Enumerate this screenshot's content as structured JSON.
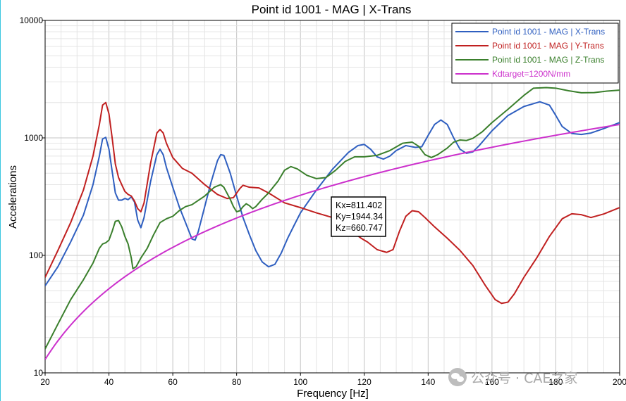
{
  "chart_data": {
    "type": "line",
    "title": "Point id 1001 - MAG | X-Trans",
    "xlabel": "Frequency [Hz]",
    "ylabel": "Accelerations",
    "xlim": [
      20,
      200
    ],
    "ylim": [
      10,
      10000
    ],
    "yscale": "log",
    "x_ticks": [
      20,
      40,
      60,
      80,
      100,
      120,
      140,
      160,
      180,
      200
    ],
    "x_tick_labels": [
      "20",
      "40",
      "60",
      "80",
      "100",
      "120",
      "140",
      "160",
      "180",
      "200"
    ],
    "y_ticks": [
      10,
      100,
      1000,
      10000
    ],
    "y_tick_labels": [
      "10",
      "100",
      "1000",
      "10000"
    ],
    "grid": true,
    "legend": {
      "position": "top-right"
    },
    "series": [
      {
        "name": "Point id 1001 - MAG | X-Trans",
        "color": "#2f5fc0",
        "points": [
          [
            20,
            55
          ],
          [
            24,
            80
          ],
          [
            28,
            130
          ],
          [
            32,
            220
          ],
          [
            35,
            400
          ],
          [
            37,
            700
          ],
          [
            38,
            980
          ],
          [
            39,
            1010
          ],
          [
            40,
            800
          ],
          [
            41,
            520
          ],
          [
            42,
            340
          ],
          [
            43,
            295
          ],
          [
            44,
            295
          ],
          [
            45,
            305
          ],
          [
            46,
            298
          ],
          [
            47,
            315
          ],
          [
            48,
            285
          ],
          [
            49,
            200
          ],
          [
            50,
            172
          ],
          [
            51,
            210
          ],
          [
            53,
            420
          ],
          [
            55,
            720
          ],
          [
            56,
            800
          ],
          [
            57,
            720
          ],
          [
            58,
            560
          ],
          [
            60,
            380
          ],
          [
            62,
            260
          ],
          [
            64,
            190
          ],
          [
            66,
            138
          ],
          [
            67,
            135
          ],
          [
            68,
            160
          ],
          [
            70,
            260
          ],
          [
            72,
            420
          ],
          [
            74,
            640
          ],
          [
            75,
            720
          ],
          [
            76,
            710
          ],
          [
            78,
            500
          ],
          [
            80,
            320
          ],
          [
            82,
            210
          ],
          [
            84,
            150
          ],
          [
            86,
            110
          ],
          [
            88,
            88
          ],
          [
            90,
            80
          ],
          [
            92,
            84
          ],
          [
            94,
            105
          ],
          [
            96,
            140
          ],
          [
            98,
            180
          ],
          [
            100,
            230
          ],
          [
            105,
            360
          ],
          [
            110,
            540
          ],
          [
            115,
            750
          ],
          [
            118,
            860
          ],
          [
            120,
            880
          ],
          [
            122,
            800
          ],
          [
            124,
            690
          ],
          [
            126,
            660
          ],
          [
            128,
            700
          ],
          [
            130,
            780
          ],
          [
            133,
            860
          ],
          [
            136,
            830
          ],
          [
            138,
            840
          ],
          [
            140,
            1050
          ],
          [
            142,
            1300
          ],
          [
            144,
            1420
          ],
          [
            146,
            1300
          ],
          [
            148,
            1000
          ],
          [
            150,
            800
          ],
          [
            152,
            740
          ],
          [
            154,
            760
          ],
          [
            156,
            860
          ],
          [
            160,
            1150
          ],
          [
            165,
            1550
          ],
          [
            170,
            1850
          ],
          [
            175,
            2030
          ],
          [
            178,
            1900
          ],
          [
            180,
            1550
          ],
          [
            182,
            1250
          ],
          [
            185,
            1090
          ],
          [
            188,
            1070
          ],
          [
            191,
            1100
          ],
          [
            195,
            1200
          ],
          [
            200,
            1350
          ]
        ]
      },
      {
        "name": "Point id 1001 - MAG | Y-Trans",
        "color": "#c02020",
        "points": [
          [
            20,
            65
          ],
          [
            24,
            110
          ],
          [
            28,
            190
          ],
          [
            32,
            360
          ],
          [
            35,
            700
          ],
          [
            37,
            1300
          ],
          [
            38,
            1900
          ],
          [
            39,
            2000
          ],
          [
            40,
            1600
          ],
          [
            41,
            1000
          ],
          [
            42,
            600
          ],
          [
            43,
            460
          ],
          [
            44,
            400
          ],
          [
            45,
            350
          ],
          [
            46,
            330
          ],
          [
            47,
            320
          ],
          [
            48,
            290
          ],
          [
            49,
            250
          ],
          [
            50,
            235
          ],
          [
            51,
            280
          ],
          [
            53,
            600
          ],
          [
            55,
            1100
          ],
          [
            56,
            1180
          ],
          [
            57,
            1100
          ],
          [
            58,
            900
          ],
          [
            60,
            680
          ],
          [
            63,
            550
          ],
          [
            66,
            500
          ],
          [
            70,
            400
          ],
          [
            74,
            330
          ],
          [
            77,
            305
          ],
          [
            79,
            310
          ],
          [
            81,
            370
          ],
          [
            82,
            395
          ],
          [
            84,
            380
          ],
          [
            87,
            375
          ],
          [
            90,
            340
          ],
          [
            95,
            280
          ],
          [
            100,
            255
          ],
          [
            105,
            230
          ],
          [
            110,
            210
          ],
          [
            113,
            190
          ],
          [
            116,
            160
          ],
          [
            119,
            140
          ],
          [
            121,
            130
          ],
          [
            124,
            112
          ],
          [
            127,
            106
          ],
          [
            129,
            112
          ],
          [
            131,
            160
          ],
          [
            133,
            215
          ],
          [
            135,
            240
          ],
          [
            137,
            235
          ],
          [
            139,
            210
          ],
          [
            142,
            175
          ],
          [
            146,
            140
          ],
          [
            150,
            110
          ],
          [
            154,
            82
          ],
          [
            158,
            55
          ],
          [
            161,
            42
          ],
          [
            163,
            39
          ],
          [
            165,
            40
          ],
          [
            167,
            47
          ],
          [
            170,
            65
          ],
          [
            174,
            95
          ],
          [
            178,
            145
          ],
          [
            182,
            205
          ],
          [
            185,
            226
          ],
          [
            188,
            222
          ],
          [
            191,
            210
          ],
          [
            195,
            225
          ],
          [
            200,
            255
          ]
        ]
      },
      {
        "name": "Point id 1001 - MAG | Z-Trans",
        "color": "#3a7f2c",
        "points": [
          [
            20,
            16
          ],
          [
            24,
            26
          ],
          [
            28,
            42
          ],
          [
            32,
            62
          ],
          [
            35,
            86
          ],
          [
            37,
            115
          ],
          [
            38,
            125
          ],
          [
            39,
            128
          ],
          [
            40,
            135
          ],
          [
            41,
            160
          ],
          [
            42,
            195
          ],
          [
            43,
            198
          ],
          [
            44,
            175
          ],
          [
            45,
            145
          ],
          [
            46,
            125
          ],
          [
            47,
            95
          ],
          [
            47.5,
            77
          ],
          [
            48.5,
            80
          ],
          [
            50,
            95
          ],
          [
            52,
            115
          ],
          [
            54,
            150
          ],
          [
            56,
            190
          ],
          [
            58,
            205
          ],
          [
            60,
            215
          ],
          [
            62,
            240
          ],
          [
            64,
            260
          ],
          [
            66,
            270
          ],
          [
            70,
            320
          ],
          [
            73,
            380
          ],
          [
            75,
            400
          ],
          [
            76,
            380
          ],
          [
            78,
            300
          ],
          [
            79,
            260
          ],
          [
            80,
            235
          ],
          [
            81,
            240
          ],
          [
            82,
            260
          ],
          [
            83,
            275
          ],
          [
            84,
            265
          ],
          [
            85,
            250
          ],
          [
            86,
            260
          ],
          [
            88,
            300
          ],
          [
            90,
            340
          ],
          [
            93,
            430
          ],
          [
            95,
            530
          ],
          [
            97,
            570
          ],
          [
            99,
            545
          ],
          [
            102,
            480
          ],
          [
            105,
            450
          ],
          [
            108,
            460
          ],
          [
            111,
            530
          ],
          [
            114,
            630
          ],
          [
            117,
            690
          ],
          [
            120,
            690
          ],
          [
            124,
            710
          ],
          [
            128,
            780
          ],
          [
            132,
            900
          ],
          [
            135,
            920
          ],
          [
            137,
            850
          ],
          [
            139,
            720
          ],
          [
            141,
            680
          ],
          [
            143,
            720
          ],
          [
            146,
            820
          ],
          [
            148,
            920
          ],
          [
            150,
            960
          ],
          [
            152,
            950
          ],
          [
            154,
            990
          ],
          [
            157,
            1130
          ],
          [
            160,
            1350
          ],
          [
            165,
            1750
          ],
          [
            170,
            2300
          ],
          [
            173,
            2650
          ],
          [
            177,
            2680
          ],
          [
            180,
            2650
          ],
          [
            184,
            2520
          ],
          [
            188,
            2420
          ],
          [
            192,
            2430
          ],
          [
            196,
            2500
          ],
          [
            200,
            2550
          ]
        ]
      },
      {
        "name": "Kdtarget=1200N/mm",
        "color": "#cc30cc",
        "function": "kdtarget",
        "y_at_20": 13,
        "y_at_200": 1300,
        "exponent": 2
      }
    ],
    "annotations": [
      {
        "lines": [
          "Kx=811.402",
          "Ky=1944.34",
          "Kz=660.747"
        ],
        "anchor": [
          106.5,
          160
        ]
      }
    ]
  },
  "watermark": {
    "text": "公众号 · CAE之家"
  }
}
